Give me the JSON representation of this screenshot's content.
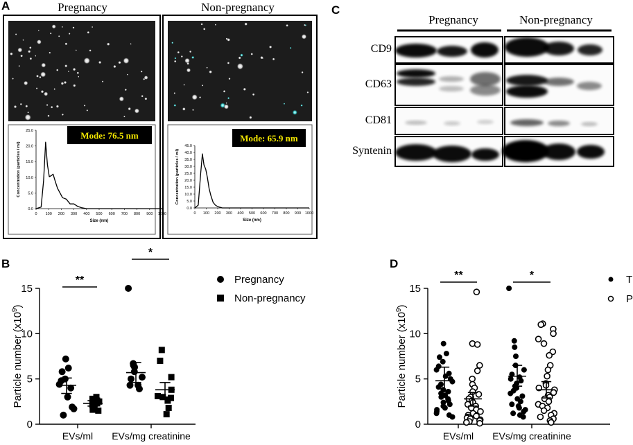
{
  "panels": {
    "A": "A",
    "B": "B",
    "C": "C",
    "D": "D"
  },
  "panel_a": {
    "left_title": "Pregnancy",
    "right_title": "Non-pregnancy",
    "left_mode": "Mode: 76.5 nm",
    "right_mode": "Mode: 65.9 nm",
    "xlabel": "Size (nm)",
    "ylabel": "Concentration (particles / ml)",
    "left_yticks": [
      "0.0",
      "5.0",
      "10.0",
      "15.0",
      "20.0",
      "25.0"
    ],
    "right_yticks": [
      "0.0",
      "5.0",
      "10.0",
      "15.0",
      "20.0",
      "25.0",
      "30.0",
      "35.0",
      "40.0",
      "45.0"
    ],
    "xticks": [
      "0",
      "100",
      "200",
      "300",
      "400",
      "500",
      "600",
      "700",
      "800",
      "900",
      "1000"
    ]
  },
  "panel_c": {
    "group_left": "Pregnancy",
    "group_right": "Non-pregnancy",
    "rows": [
      "CD9",
      "CD63",
      "CD81",
      "Syntenin"
    ]
  },
  "chart_data": [
    {
      "type": "line",
      "panel": "A-left",
      "xlabel": "Size (nm)",
      "ylabel": "Concentration (particles / ml)",
      "xlim": [
        0,
        1000
      ],
      "ylim": [
        0,
        25
      ],
      "x": [
        0,
        40,
        60,
        76,
        90,
        105,
        120,
        135,
        150,
        170,
        190,
        210,
        240,
        270,
        300,
        330,
        360,
        400,
        1000
      ],
      "y": [
        0,
        0.5,
        9,
        21.2,
        14,
        10.2,
        10.5,
        11,
        9,
        6.5,
        5,
        3.5,
        3,
        1.5,
        1.5,
        0.7,
        0.3,
        0,
        0
      ]
    },
    {
      "type": "line",
      "panel": "A-right",
      "xlabel": "Size (nm)",
      "ylabel": "Concentration (particles / ml)",
      "xlim": [
        0,
        1000
      ],
      "ylim": [
        0,
        45
      ],
      "x": [
        0,
        30,
        50,
        66,
        80,
        95,
        110,
        125,
        140,
        160,
        180,
        200,
        240,
        1000
      ],
      "y": [
        0,
        2,
        24,
        39,
        31,
        28,
        22,
        14,
        9,
        4,
        2,
        1,
        0,
        0
      ]
    },
    {
      "type": "scatter",
      "panel": "B",
      "ylabel": "Particle number (x10⁹)",
      "ylim": [
        0,
        15
      ],
      "yticks": [
        0,
        5,
        10,
        15
      ],
      "categories": [
        "EVs/ml",
        "EVs/mg creatinine"
      ],
      "legend_position": "right",
      "series": [
        {
          "name": "Pregnancy",
          "marker": "circle-filled",
          "group": 0,
          "values": [
            7.2,
            6.2,
            5.8,
            5.0,
            4.8,
            4.4,
            4.0,
            3.0,
            1.9,
            1.7,
            1.0
          ],
          "mean": 4.3,
          "sem_low": 3.4,
          "sem_high": 5.1
        },
        {
          "name": "Non-pregnancy",
          "marker": "square-filled",
          "group": 0,
          "values": [
            3.0,
            2.8,
            2.6,
            2.5,
            2.3,
            2.2,
            2.1,
            1.8,
            1.6,
            1.5
          ],
          "mean": 2.3,
          "sem_low": 2.0,
          "sem_high": 2.6
        },
        {
          "name": "Pregnancy",
          "marker": "circle-filled",
          "group": 1,
          "values": [
            15.0,
            6.7,
            6.5,
            6.3,
            5.8,
            5.2,
            5.0,
            4.3,
            4.3,
            3.9
          ],
          "mean": 5.7,
          "sem_low": 4.6,
          "sem_high": 6.8
        },
        {
          "name": "Non-pregnancy",
          "marker": "square-filled",
          "group": 1,
          "values": [
            8.2,
            7.0,
            5.2,
            3.8,
            3.1,
            3.0,
            2.9,
            2.6,
            1.8,
            1.1
          ],
          "mean": 3.8,
          "sem_low": 3.0,
          "sem_high": 4.6
        }
      ],
      "significance": [
        {
          "group": 0,
          "label": "**"
        },
        {
          "group": 1,
          "label": "*"
        }
      ]
    },
    {
      "type": "scatter",
      "panel": "D",
      "ylabel": "Particle number (x10⁹)",
      "ylim": [
        0,
        15
      ],
      "yticks": [
        0,
        5,
        10,
        15
      ],
      "categories": [
        "EVs/ml",
        "EVs/mg creatinine"
      ],
      "legend_position": "top-right",
      "series": [
        {
          "name": "TB",
          "marker": "circle-filled",
          "group": 0,
          "values": [
            8.9,
            7.8,
            7.4,
            6.9,
            6.4,
            6.0,
            5.6,
            5.3,
            5.0,
            4.7,
            4.4,
            4.1,
            3.8,
            3.6,
            3.4,
            3.2,
            3.0,
            2.8,
            2.6,
            2.4,
            2.2,
            2.0,
            1.8,
            1.6,
            1.4,
            1.2,
            1.0,
            0.8
          ],
          "mean": 4.8,
          "sem_low": 3.6,
          "sem_high": 6.3
        },
        {
          "name": "PB",
          "marker": "circle-open",
          "group": 0,
          "values": [
            14.6,
            8.9,
            8.8,
            6.5,
            5.9,
            5.0,
            4.4,
            4.0,
            3.6,
            3.3,
            3.0,
            2.8,
            2.6,
            2.4,
            2.2,
            2.0,
            1.8,
            1.6,
            1.4,
            1.2,
            1.0,
            0.9,
            0.8,
            0.7,
            0.6,
            0.5,
            0.4,
            0.3,
            0.2,
            0.1
          ],
          "mean": 2.8,
          "sem_low": 2.0,
          "sem_high": 3.5
        },
        {
          "name": "TB",
          "marker": "circle-filled",
          "group": 1,
          "values": [
            15.0,
            9.2,
            8.5,
            7.5,
            6.5,
            6.0,
            5.5,
            5.2,
            5.0,
            4.8,
            4.5,
            4.2,
            4.0,
            3.7,
            3.4,
            3.1,
            2.8,
            2.5,
            2.2,
            2.0,
            1.8,
            1.6,
            1.4,
            1.2,
            1.0,
            0.8
          ],
          "mean": 5.3,
          "sem_low": 4.2,
          "sem_high": 6.5
        },
        {
          "name": "PB",
          "marker": "circle-open",
          "group": 1,
          "values": [
            11.1,
            11.0,
            10.5,
            10.0,
            9.4,
            8.9,
            8.0,
            7.6,
            6.5,
            6.0,
            5.3,
            4.5,
            4.3,
            4.0,
            3.8,
            3.5,
            3.2,
            3.0,
            2.8,
            2.5,
            2.2,
            2.0,
            1.8,
            1.5,
            1.2,
            1.0,
            0.8,
            0.6,
            0.4,
            0.2
          ],
          "mean": 3.8,
          "sem_low": 2.9,
          "sem_high": 4.7
        }
      ],
      "significance": [
        {
          "group": 0,
          "label": "**"
        },
        {
          "group": 1,
          "label": "*"
        }
      ]
    }
  ]
}
